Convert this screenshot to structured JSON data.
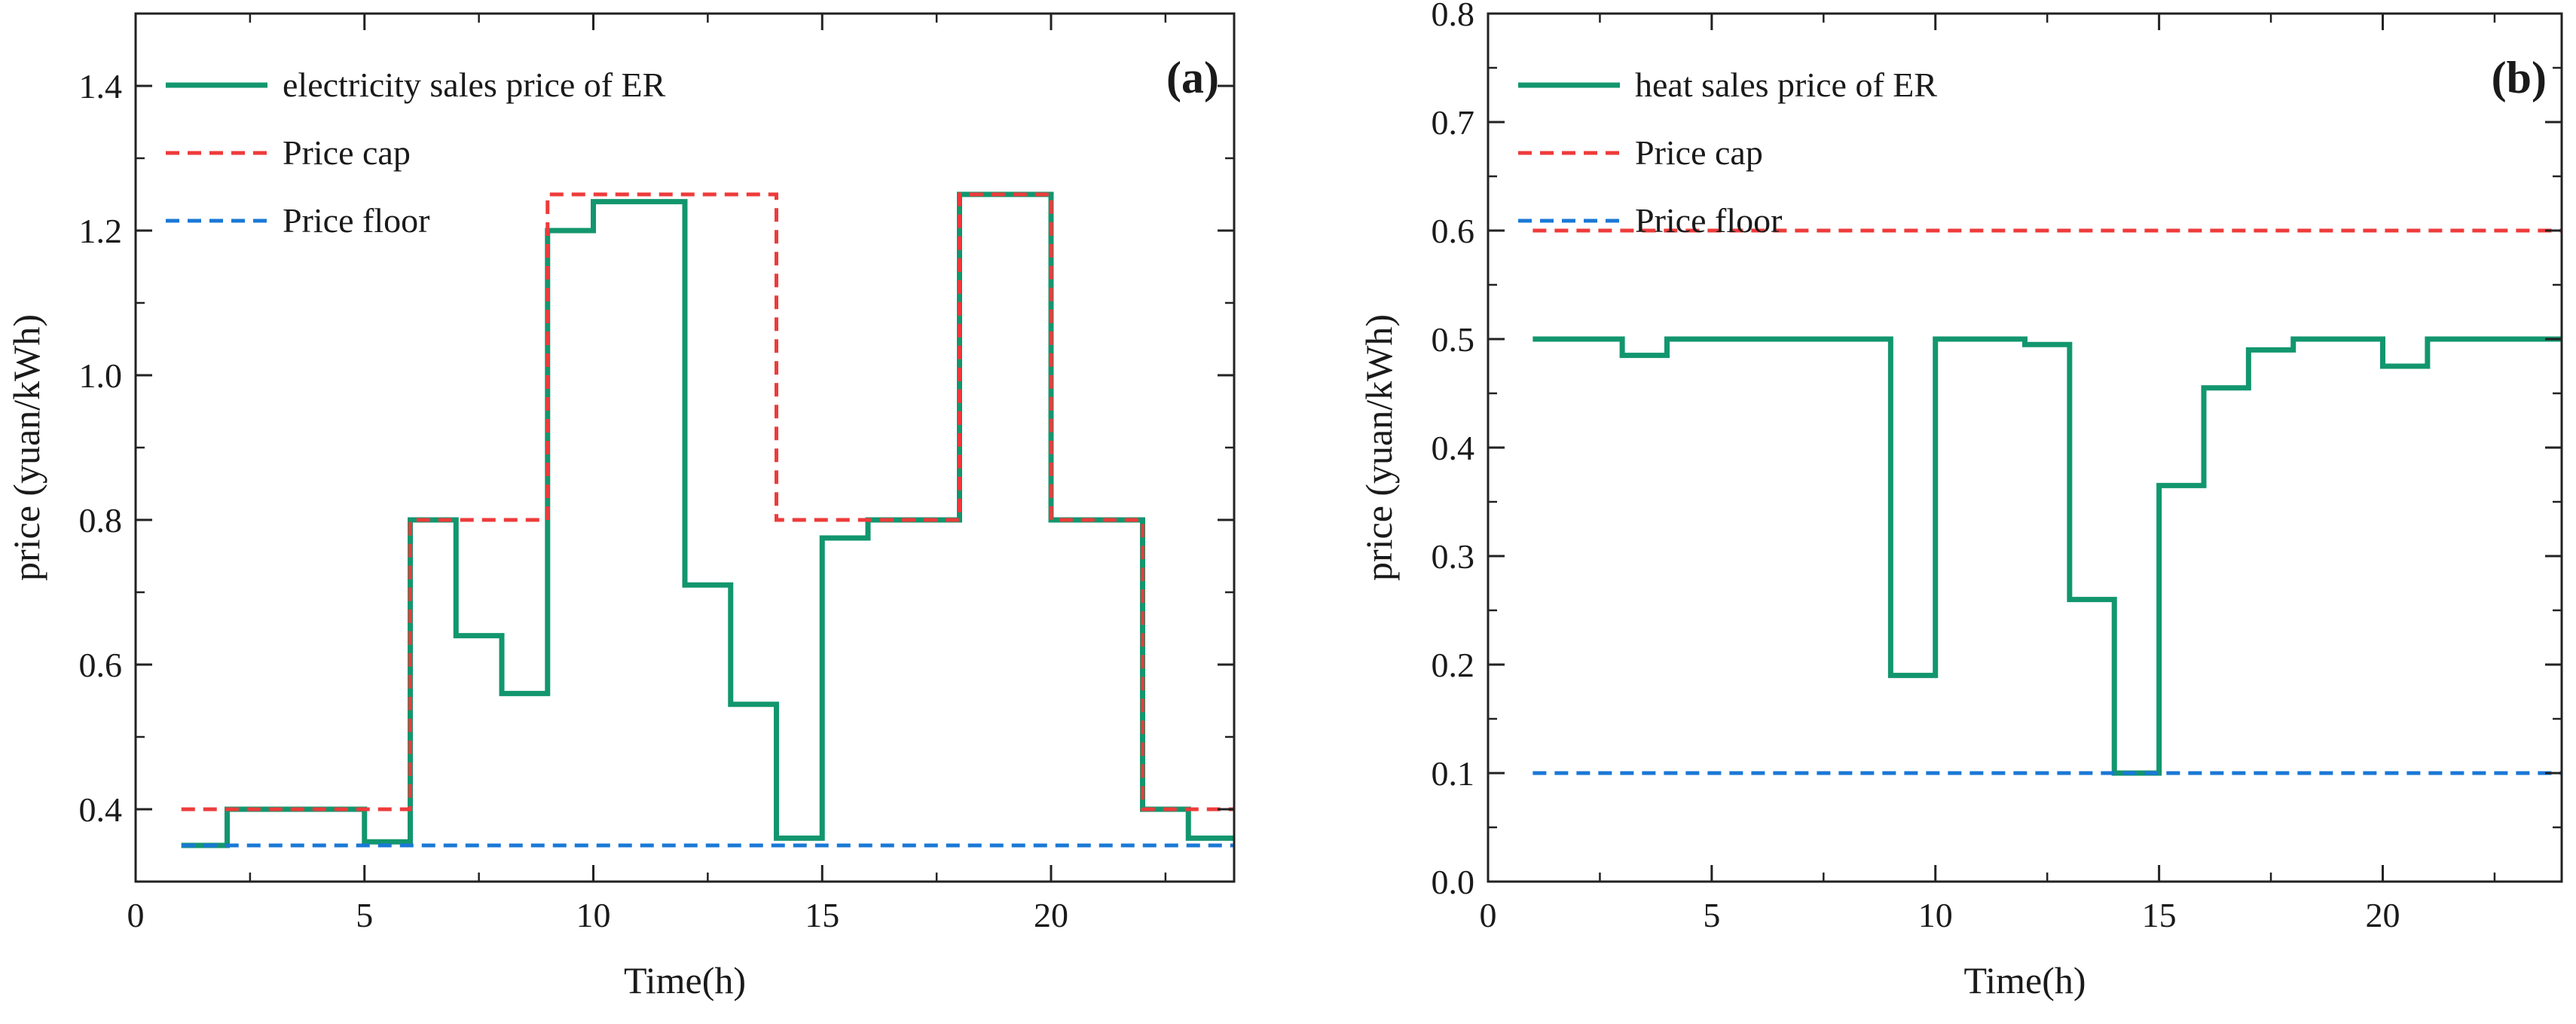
{
  "chart_data": [
    {
      "type": "line",
      "panel_label": "(a)",
      "xlabel": "Time(h)",
      "ylabel": "price (yuan/kWh)",
      "xlim": [
        0,
        24
      ],
      "ylim": [
        0.3,
        1.5
      ],
      "xticks": [
        0,
        5,
        10,
        15,
        20
      ],
      "xtick_labels": [
        "0",
        "5",
        "10",
        "15",
        "20"
      ],
      "yticks": [
        0.4,
        0.6,
        0.8,
        1.0,
        1.2,
        1.4
      ],
      "ytick_labels": [
        "0.4",
        "0.6",
        "0.8",
        "1.0",
        "1.2",
        "1.4"
      ],
      "legend_position": "top-left",
      "series": [
        {
          "name": "electricity sales price of ER",
          "style": "step-solid",
          "color": "#12966e",
          "x": [
            1,
            2,
            5,
            6,
            7,
            8,
            9,
            10,
            12,
            13,
            14,
            15,
            16,
            18,
            20,
            22,
            23,
            24
          ],
          "y": [
            0.35,
            0.4,
            0.355,
            0.8,
            0.64,
            0.56,
            1.2,
            1.24,
            0.71,
            0.545,
            0.36,
            0.775,
            0.8,
            1.25,
            0.8,
            0.4,
            0.36,
            0.36
          ]
        },
        {
          "name": "Price cap",
          "style": "step-dashed",
          "color": "#ee3b3b",
          "x": [
            1,
            6,
            9,
            14,
            18,
            20,
            22,
            24
          ],
          "y": [
            0.4,
            0.8,
            1.25,
            0.8,
            1.25,
            0.8,
            0.4,
            0.4
          ]
        },
        {
          "name": "Price floor",
          "style": "step-dashed",
          "color": "#1a78d6",
          "x": [
            1,
            24
          ],
          "y": [
            0.35,
            0.35
          ]
        }
      ]
    },
    {
      "type": "line",
      "panel_label": "(b)",
      "xlabel": "Time(h)",
      "ylabel": "price (yuan/kWh)",
      "xlim": [
        0,
        24
      ],
      "ylim": [
        0.0,
        0.8
      ],
      "xticks": [
        0,
        5,
        10,
        15,
        20
      ],
      "xtick_labels": [
        "0",
        "5",
        "10",
        "15",
        "20"
      ],
      "yticks": [
        0.0,
        0.1,
        0.2,
        0.3,
        0.4,
        0.5,
        0.6,
        0.7,
        0.8
      ],
      "ytick_labels": [
        "0.0",
        "0.1",
        "0.2",
        "0.3",
        "0.4",
        "0.5",
        "0.6",
        "0.7",
        "0.8"
      ],
      "legend_position": "top-left",
      "series": [
        {
          "name": "heat sales price of ER",
          "style": "step-solid",
          "color": "#12966e",
          "x": [
            1,
            3,
            4,
            6,
            9,
            10,
            12,
            13,
            14,
            15,
            16,
            17,
            18,
            20,
            21,
            23,
            24
          ],
          "y": [
            0.5,
            0.485,
            0.5,
            0.5,
            0.19,
            0.5,
            0.495,
            0.26,
            0.1,
            0.365,
            0.455,
            0.49,
            0.5,
            0.475,
            0.5,
            0.5,
            0.5
          ]
        },
        {
          "name": "Price cap",
          "style": "step-dashed",
          "color": "#ee3b3b",
          "x": [
            1,
            24
          ],
          "y": [
            0.6,
            0.6
          ]
        },
        {
          "name": "Price floor",
          "style": "step-dashed",
          "color": "#1a78d6",
          "x": [
            1,
            24
          ],
          "y": [
            0.1,
            0.1
          ]
        }
      ]
    }
  ]
}
